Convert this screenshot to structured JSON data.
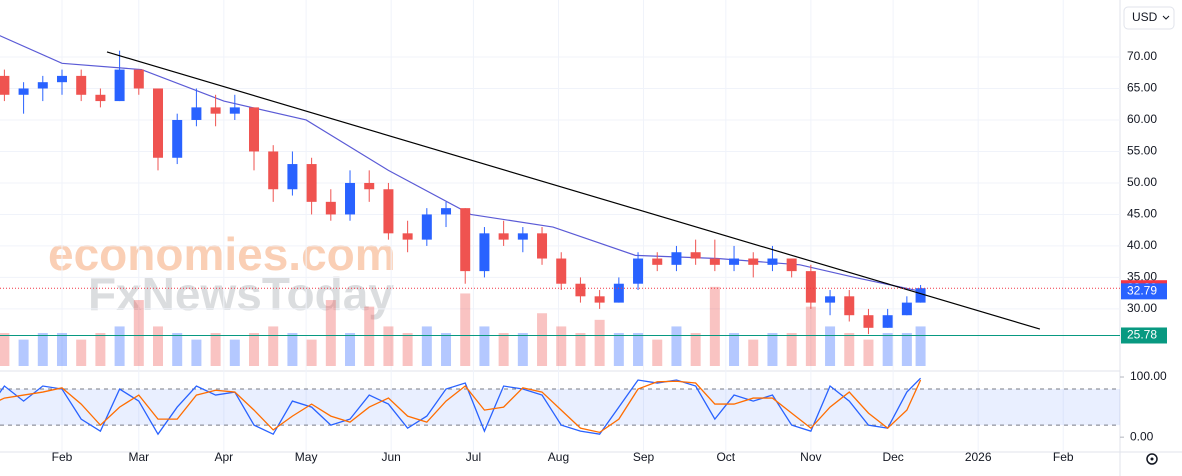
{
  "chart_data": {
    "type": "candlestick",
    "currency": "USD",
    "watermark": [
      "economies.com",
      "FxNewsToday"
    ],
    "x": [
      3,
      10,
      17,
      24,
      31,
      38,
      45,
      52,
      59,
      66,
      73,
      80,
      87,
      94,
      101,
      108,
      115,
      122,
      129,
      136,
      143,
      150,
      157,
      164,
      171,
      178,
      185,
      192,
      199,
      206,
      213,
      220,
      227,
      234,
      241,
      248,
      255,
      262,
      269,
      276,
      283,
      290,
      297,
      304,
      311,
      318,
      325,
      332,
      339,
      344
    ],
    "open": [
      69,
      67,
      64,
      65,
      66,
      67,
      64,
      63,
      68,
      65,
      54,
      60,
      62,
      61,
      62,
      55,
      49,
      53,
      47,
      45,
      50,
      49,
      42,
      41,
      45,
      46,
      36,
      42,
      41,
      42,
      38,
      34,
      32,
      31,
      34,
      38,
      37,
      39,
      38,
      37,
      38,
      37,
      38,
      36,
      31,
      32,
      29,
      27,
      29,
      31
    ],
    "high": [
      70,
      68,
      66,
      67,
      68,
      68,
      65,
      71,
      68,
      65,
      61,
      65,
      64,
      64,
      62,
      56,
      55,
      54,
      49,
      52,
      52,
      50,
      44,
      46,
      47,
      46,
      43,
      44,
      43,
      43,
      39,
      35,
      33,
      35,
      39,
      39,
      40,
      41,
      41,
      40,
      39,
      40,
      38,
      37,
      33,
      33,
      30,
      30,
      32,
      33.8
    ],
    "low": [
      66,
      63,
      61,
      63,
      64,
      63,
      62,
      63,
      64,
      52,
      53,
      59,
      59,
      60,
      52,
      47,
      48,
      45,
      44,
      44,
      47,
      41,
      39,
      40,
      43,
      34,
      35,
      40,
      39,
      37,
      33,
      31,
      30,
      31,
      33,
      36,
      36,
      37,
      36,
      36,
      35,
      36,
      35,
      30,
      29,
      28,
      26,
      27,
      29,
      31
    ],
    "close": [
      67,
      64,
      65,
      66,
      67,
      64,
      63,
      68,
      65,
      54,
      60,
      62,
      61,
      62,
      55,
      49,
      53,
      47,
      45,
      50,
      49,
      42,
      41,
      45,
      46,
      36,
      42,
      41,
      42,
      38,
      34,
      32,
      31,
      34,
      38,
      37,
      39,
      38,
      37,
      38,
      37,
      38,
      36,
      31,
      32,
      29,
      27,
      29,
      31,
      33.29
    ],
    "up_color": "#2962ff",
    "down_color": "#ef5350",
    "xlim": [
      8.4,
      416.7
    ],
    "xticks": [
      {
        "value": 31,
        "label": "Feb"
      },
      {
        "value": 59,
        "label": "Mar"
      },
      {
        "value": 90,
        "label": "Apr"
      },
      {
        "value": 120,
        "label": "May"
      },
      {
        "value": 151,
        "label": "Jun"
      },
      {
        "value": 181,
        "label": "Jul"
      },
      {
        "value": 212,
        "label": "Aug"
      },
      {
        "value": 243,
        "label": "Sep"
      },
      {
        "value": 273,
        "label": "Oct"
      },
      {
        "value": 304,
        "label": "Nov"
      },
      {
        "value": 334,
        "label": "Dec"
      },
      {
        "value": 365,
        "label": "2026"
      },
      {
        "value": 396,
        "label": "Feb"
      }
    ],
    "ylim": [
      20.3,
      79.05
    ],
    "yticks": [
      {
        "value": 30,
        "label": "30.00"
      },
      {
        "value": 35,
        "label": "35.00"
      },
      {
        "value": 40,
        "label": "40.00"
      },
      {
        "value": 45,
        "label": "45.00"
      },
      {
        "value": 50,
        "label": "50.00"
      },
      {
        "value": 55,
        "label": "55.00"
      },
      {
        "value": 60,
        "label": "60.00"
      },
      {
        "value": 65,
        "label": "65.00"
      },
      {
        "value": 70,
        "label": "70.00"
      }
    ],
    "grid": true,
    "moving_average": {
      "color": "#5b5bd6",
      "x": [
        0,
        31,
        60,
        90,
        120,
        150,
        180,
        210,
        240,
        270,
        300,
        320,
        344
      ],
      "values": [
        75,
        69,
        68,
        63,
        60,
        52,
        45,
        43,
        38.5,
        38,
        37,
        35,
        32.79
      ]
    },
    "trendline": {
      "color": "#000000",
      "x": [
        47.4,
        387.5
      ],
      "values": [
        70.8,
        26.8
      ]
    },
    "price_labels": [
      {
        "value": 33.29,
        "color": "#f23645",
        "line": "dotted"
      },
      {
        "value": 32.79,
        "color": "#2962ff"
      },
      {
        "value": 25.78,
        "color": "#089981",
        "line": "solid"
      }
    ],
    "volume": {
      "ylim": [
        0,
        55.5
      ],
      "values": [
        4,
        5,
        4,
        5,
        5,
        4,
        5,
        6,
        10,
        6,
        5,
        4,
        5,
        4,
        5,
        6,
        5,
        4,
        10,
        5,
        9,
        6,
        5,
        6,
        5,
        11,
        6,
        5,
        5,
        8,
        6,
        5,
        7,
        5,
        5,
        4,
        6,
        5,
        12,
        5,
        4,
        5,
        5,
        9,
        6,
        5,
        4,
        5,
        5,
        6
      ]
    },
    "stochastic": {
      "ylim": [
        -23,
        110
      ],
      "yticks": [
        {
          "value": 100,
          "label": "100.00"
        },
        {
          "value": 0,
          "label": "0.00"
        }
      ],
      "bands": [
        20,
        80
      ],
      "series": [
        {
          "color": "#2962ff",
          "values": [
            40,
            85,
            60,
            85,
            80,
            30,
            10,
            80,
            60,
            5,
            50,
            85,
            70,
            75,
            20,
            5,
            60,
            50,
            20,
            30,
            70,
            55,
            15,
            35,
            80,
            90,
            10,
            85,
            80,
            70,
            20,
            10,
            5,
            50,
            95,
            90,
            95,
            85,
            30,
            70,
            60,
            70,
            20,
            10,
            85,
            60,
            20,
            15,
            75,
            98
          ]
        },
        {
          "color": "#ff6d00",
          "values": [
            50,
            65,
            70,
            75,
            82,
            55,
            20,
            50,
            70,
            30,
            30,
            70,
            78,
            75,
            45,
            12,
            35,
            55,
            35,
            25,
            50,
            65,
            35,
            25,
            60,
            85,
            45,
            50,
            82,
            75,
            45,
            15,
            8,
            30,
            80,
            92,
            93,
            90,
            55,
            55,
            65,
            65,
            40,
            15,
            50,
            75,
            40,
            15,
            45,
            95
          ]
        }
      ]
    }
  }
}
